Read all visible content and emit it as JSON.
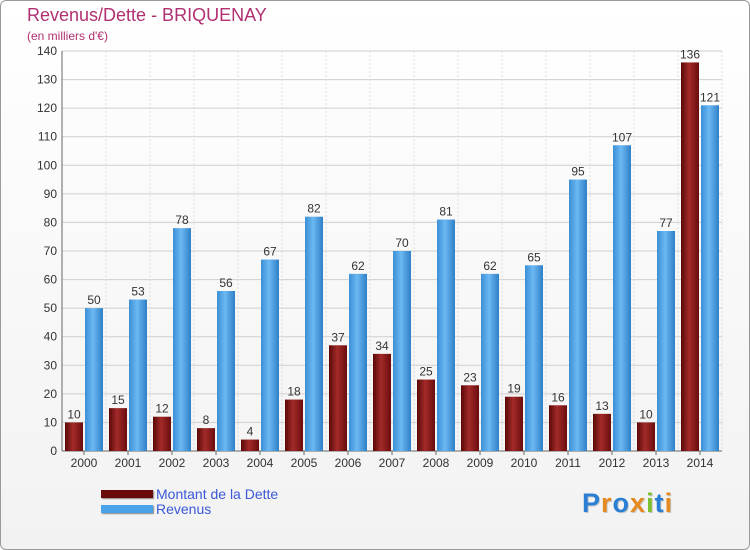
{
  "header": {
    "title": "Revenus/Dette - BRIQUENAY",
    "subtitle": "(en milliers d'€)"
  },
  "chart_data": {
    "type": "bar",
    "categories": [
      "2000",
      "2001",
      "2002",
      "2003",
      "2004",
      "2005",
      "2006",
      "2007",
      "2008",
      "2009",
      "2010",
      "2011",
      "2012",
      "2013",
      "2014"
    ],
    "series": [
      {
        "name": "Montant de la Dette",
        "color": "#8b1a1a",
        "values": [
          10,
          15,
          12,
          8,
          4,
          18,
          37,
          34,
          25,
          23,
          19,
          16,
          13,
          10,
          136
        ]
      },
      {
        "name": "Revenus",
        "color": "#4aa3e8",
        "values": [
          50,
          53,
          78,
          56,
          67,
          82,
          62,
          70,
          81,
          62,
          65,
          95,
          107,
          77,
          121
        ]
      }
    ],
    "yticks": [
      0,
      10,
      20,
      30,
      40,
      50,
      60,
      70,
      80,
      90,
      100,
      110,
      120,
      130,
      140
    ],
    "ylim": [
      0,
      140
    ],
    "grid": true,
    "legend_position": "bottom-left"
  },
  "legend": {
    "items": [
      {
        "label": "Montant de la Dette",
        "color": "#6b0a0a"
      },
      {
        "label": "Revenus",
        "color": "#4aa3e8"
      }
    ]
  },
  "logo": {
    "letters": [
      {
        "ch": "P",
        "color": "#2a7fd4"
      },
      {
        "ch": "r",
        "color": "#e58a1f"
      },
      {
        "ch": "o",
        "color": "#2a7fd4"
      },
      {
        "ch": "x",
        "color": "#e58a1f"
      },
      {
        "ch": "i",
        "color": "#7cbf2e"
      },
      {
        "ch": "t",
        "color": "#2a7fd4"
      },
      {
        "ch": "i",
        "color": "#e58a1f"
      }
    ]
  }
}
